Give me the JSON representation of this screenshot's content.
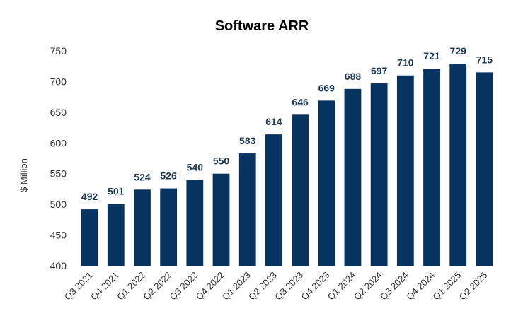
{
  "chart_data": {
    "type": "bar",
    "title": "Software ARR",
    "xlabel": "",
    "ylabel": "$ Million",
    "ylim": [
      400,
      750
    ],
    "yticks": [
      400,
      450,
      500,
      550,
      600,
      650,
      700,
      750
    ],
    "grid": false,
    "legend": "none",
    "categories": [
      "Q3 2021",
      "Q4 2021",
      "Q1 2022",
      "Q2 2022",
      "Q3 2022",
      "Q4 2022",
      "Q1 2023",
      "Q2 2023",
      "Q3 2023",
      "Q4 2023",
      "Q1 2024",
      "Q2 2024",
      "Q3 2024",
      "Q4 2024",
      "Q1 2025",
      "Q2 2025"
    ],
    "values": [
      492,
      501,
      524,
      526,
      540,
      550,
      583,
      614,
      646,
      669,
      688,
      697,
      710,
      721,
      729,
      715
    ],
    "colors": {
      "bar": "#06335f",
      "label": "#1f3a5c"
    }
  }
}
